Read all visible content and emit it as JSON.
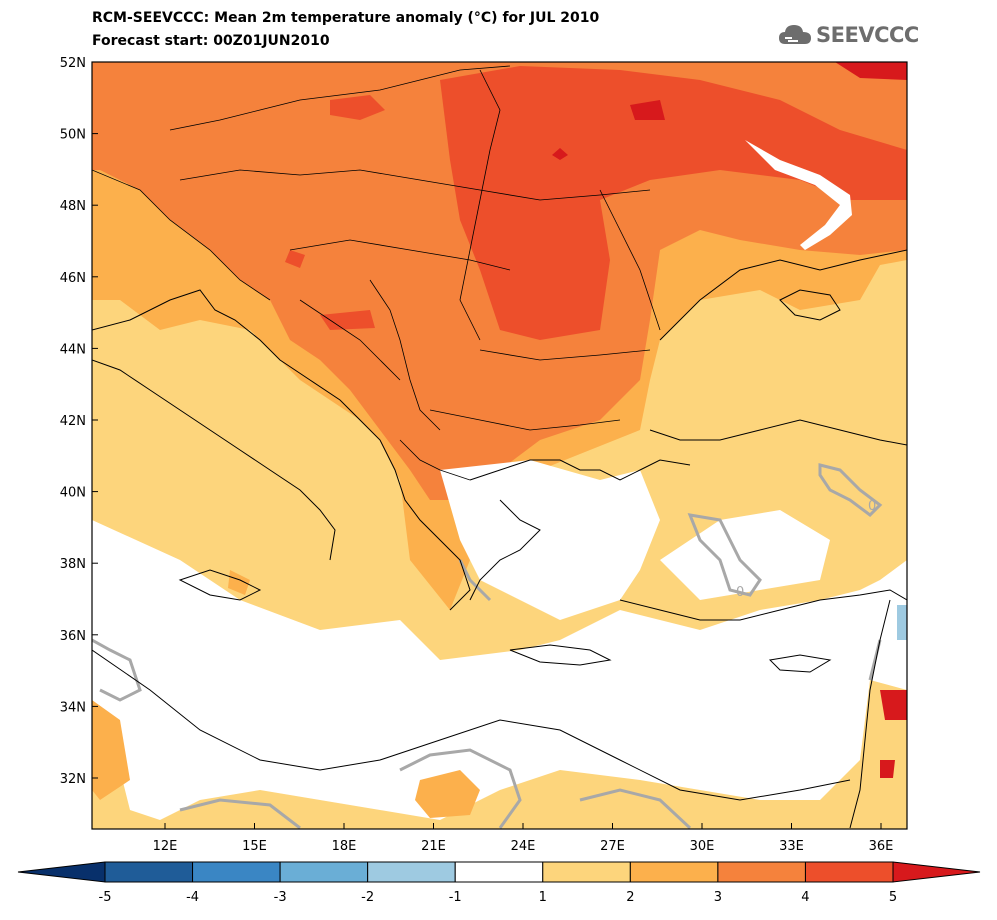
{
  "title": {
    "line1": "RCM-SEEVCCC: Mean 2m temperature anomaly (°C) for JUL 2010",
    "line2": "Forecast start: 00Z01JUN2010"
  },
  "logo": {
    "text": "SEEVCCC",
    "icon": "cloud-icon"
  },
  "map": {
    "lat_labels": [
      "52N",
      "50N",
      "48N",
      "46N",
      "44N",
      "42N",
      "40N",
      "38N",
      "36N",
      "34N",
      "32N"
    ],
    "lon_labels": [
      "12E",
      "15E",
      "18E",
      "21E",
      "24E",
      "27E",
      "30E",
      "33E",
      "36E"
    ],
    "contour_labels": [
      "0",
      "0"
    ]
  },
  "colorbar": {
    "ticks": [
      "-5",
      "-4",
      "-3",
      "-2",
      "-1",
      "1",
      "2",
      "3",
      "4",
      "5"
    ],
    "bins": [
      {
        "range": "<-5",
        "color": "#08306b"
      },
      {
        "range": "-5..-4",
        "color": "#1f5c98"
      },
      {
        "range": "-4..-3",
        "color": "#3a86c4"
      },
      {
        "range": "-3..-2",
        "color": "#6aaed6"
      },
      {
        "range": "-2..-1",
        "color": "#9ecae1"
      },
      {
        "range": "-1..1",
        "color": "#ffffff"
      },
      {
        "range": "1..2",
        "color": "#fdd57c"
      },
      {
        "range": "2..3",
        "color": "#fcb04c"
      },
      {
        "range": "3..4",
        "color": "#f5823c"
      },
      {
        "range": "4..5",
        "color": "#ed4f2b"
      },
      {
        "range": ">5",
        "color": "#d7191c"
      }
    ]
  }
}
